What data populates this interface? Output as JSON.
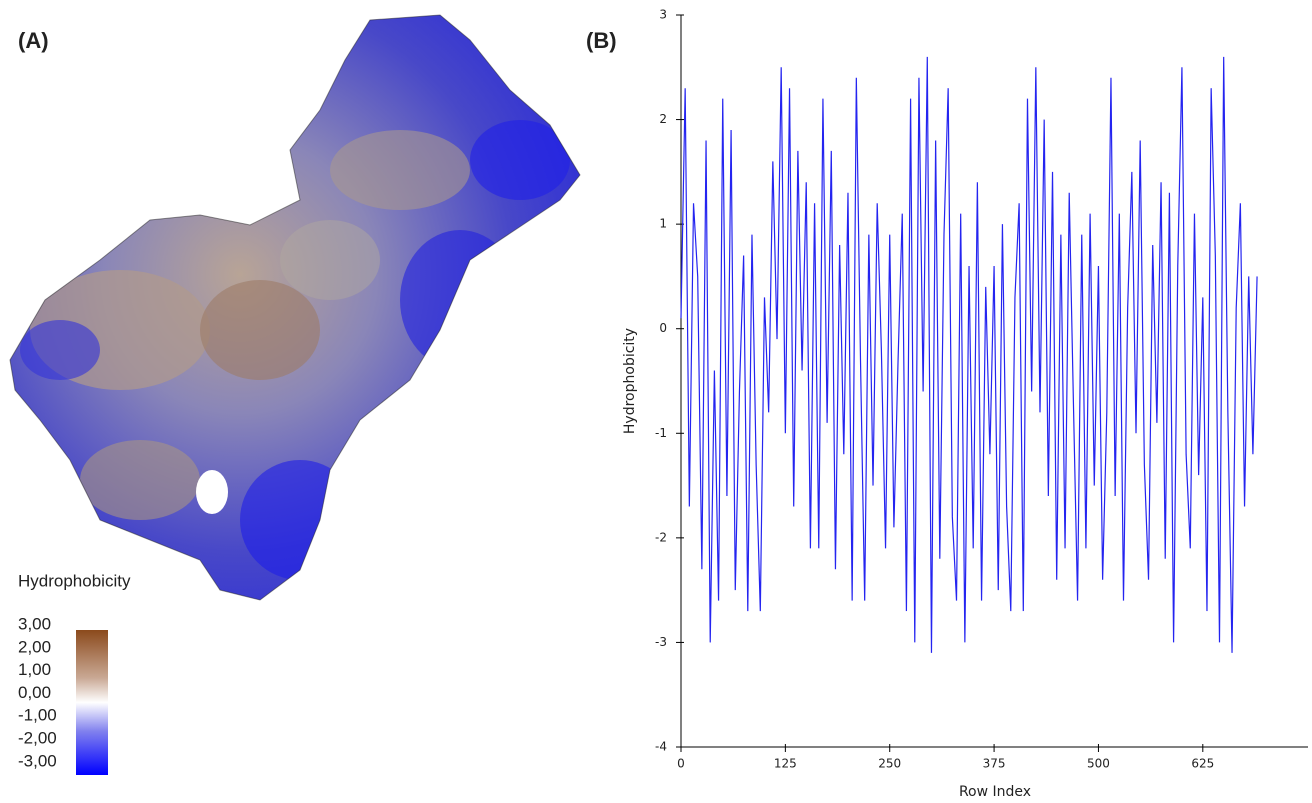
{
  "panel_labels": [
    "(A)",
    "(B)"
  ],
  "surface_legend": {
    "title": "Hydrophobicity",
    "labels": [
      "3,00",
      "2,00",
      "1,00",
      "0,00",
      "-1,00",
      "-2,00",
      "-3,00"
    ]
  },
  "chart_data": {
    "type": "line",
    "xlabel": "Row Index",
    "ylabel": "Hydrophobicity",
    "color": "#2424f0",
    "xlim": [
      0,
      751
    ],
    "ylim": [
      -4,
      3
    ],
    "xticks": [
      0,
      125,
      250,
      375,
      500,
      625
    ],
    "yticks": [
      -4,
      -3,
      -2,
      -1,
      0,
      1,
      2,
      3
    ],
    "x": [
      0,
      5,
      10,
      15,
      20,
      25,
      30,
      35,
      40,
      45,
      50,
      55,
      60,
      65,
      70,
      75,
      80,
      85,
      90,
      95,
      100,
      105,
      110,
      115,
      120,
      125,
      130,
      135,
      140,
      145,
      150,
      155,
      160,
      165,
      170,
      175,
      180,
      185,
      190,
      195,
      200,
      205,
      210,
      215,
      220,
      225,
      230,
      235,
      240,
      245,
      250,
      255,
      260,
      265,
      270,
      275,
      280,
      285,
      290,
      295,
      300,
      305,
      310,
      315,
      320,
      325,
      330,
      335,
      340,
      345,
      350,
      355,
      360,
      365,
      370,
      375,
      380,
      385,
      390,
      395,
      400,
      405,
      410,
      415,
      420,
      425,
      430,
      435,
      440,
      445,
      450,
      455,
      460,
      465,
      470,
      475,
      480,
      485,
      490,
      495,
      500,
      505,
      510,
      515,
      520,
      525,
      530,
      535,
      540,
      545,
      550,
      555,
      560,
      565,
      570,
      575,
      580,
      585,
      590,
      595,
      600,
      605,
      610,
      615,
      620,
      625,
      630,
      635,
      640,
      645,
      650,
      655,
      660,
      665,
      670,
      675,
      680,
      685,
      690
    ],
    "values": [
      0.1,
      2.3,
      -1.7,
      1.2,
      0.5,
      -2.3,
      1.8,
      -3.0,
      -0.4,
      -2.6,
      2.2,
      -1.6,
      1.9,
      -2.5,
      -0.6,
      0.7,
      -2.7,
      0.9,
      -1.3,
      -2.7,
      0.3,
      -0.8,
      1.6,
      -0.1,
      2.5,
      -1.0,
      2.3,
      -1.7,
      1.7,
      -0.4,
      1.4,
      -2.1,
      1.2,
      -2.1,
      2.2,
      -0.9,
      1.7,
      -2.3,
      0.8,
      -1.2,
      1.3,
      -2.6,
      2.4,
      -0.3,
      -2.6,
      0.9,
      -1.5,
      1.2,
      -0.2,
      -2.1,
      0.9,
      -1.9,
      -0.3,
      1.1,
      -2.7,
      2.2,
      -3.0,
      2.4,
      -0.6,
      2.6,
      -3.1,
      1.8,
      -2.2,
      0.9,
      2.3,
      -1.8,
      -2.6,
      1.1,
      -3.0,
      0.6,
      -2.1,
      1.4,
      -2.6,
      0.4,
      -1.2,
      0.6,
      -2.5,
      1.0,
      -1.7,
      -2.7,
      0.3,
      1.2,
      -2.7,
      2.2,
      -0.6,
      2.5,
      -0.8,
      2.0,
      -1.6,
      1.5,
      -2.4,
      0.9,
      -2.1,
      1.3,
      -0.7,
      -2.6,
      0.9,
      -2.1,
      1.1,
      -1.5,
      0.6,
      -2.4,
      -0.8,
      2.4,
      -1.6,
      1.1,
      -2.6,
      0.2,
      1.5,
      -1.0,
      1.8,
      -1.3,
      -2.4,
      0.8,
      -0.9,
      1.4,
      -2.2,
      1.3,
      -3.0,
      0.6,
      2.5,
      -1.2,
      -2.1,
      1.1,
      -1.4,
      0.3,
      -2.7,
      2.3,
      0.7,
      -3.0,
      2.6,
      -0.8,
      -3.1,
      0.2,
      1.2,
      -1.7,
      0.5,
      -1.2,
      0.5
    ]
  }
}
